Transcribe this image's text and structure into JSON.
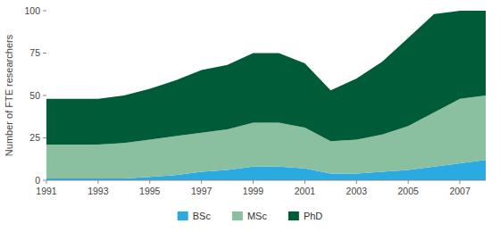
{
  "chart_data": {
    "type": "area",
    "stacked": true,
    "ylabel": "Number of FTE researchers",
    "x": [
      1991,
      1992,
      1993,
      1994,
      1995,
      1996,
      1997,
      1998,
      1999,
      2000,
      2001,
      2002,
      2003,
      2004,
      2005,
      2006,
      2007,
      2008
    ],
    "series": [
      {
        "name": "BSc",
        "color": "#29abe2",
        "values": [
          1,
          1,
          1,
          1,
          2,
          3,
          5,
          6,
          8,
          8,
          7,
          4,
          4,
          5,
          6,
          8,
          10,
          12
        ]
      },
      {
        "name": "MSc",
        "color": "#8abfa0",
        "values": [
          20,
          20,
          20,
          21,
          22,
          23,
          23,
          24,
          26,
          26,
          24,
          19,
          20,
          22,
          26,
          32,
          38,
          38
        ]
      },
      {
        "name": "PhD",
        "color": "#005c38",
        "values": [
          27,
          27,
          27,
          28,
          30,
          33,
          37,
          38,
          41,
          41,
          38,
          30,
          36,
          43,
          52,
          58,
          52,
          50
        ]
      }
    ],
    "xlim": [
      1991,
      2008
    ],
    "ylim": [
      0,
      100
    ],
    "xticks": [
      1991,
      1993,
      1995,
      1997,
      1999,
      2001,
      2003,
      2005,
      2007
    ],
    "yticks": [
      0,
      25,
      50,
      75,
      100
    ],
    "legend": "bottom",
    "grid": false
  }
}
